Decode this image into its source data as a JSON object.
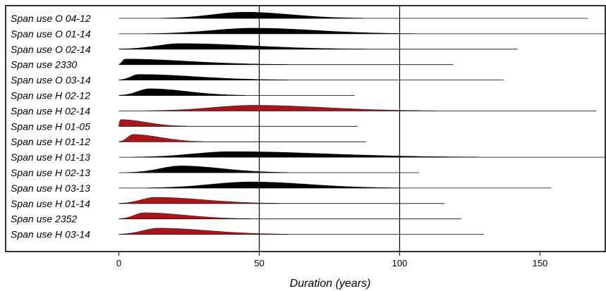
{
  "chart_data": {
    "type": "area",
    "xlabel": "Duration (years)",
    "xlim": [
      -40,
      174
    ],
    "x_ticks": [
      0,
      50,
      100,
      150
    ],
    "grid": "vertical lines at 50 and 100",
    "colors": {
      "black": "#000000",
      "red": "#a6161b"
    },
    "series": [
      {
        "name": "Span use O 04-12",
        "color": "black",
        "range": [
          0,
          167
        ],
        "dist": {
          "start": 15,
          "peak": 45,
          "end": 87,
          "height": 0.55
        }
      },
      {
        "name": "Span use O 01-14",
        "color": "black",
        "range": [
          0,
          174
        ],
        "dist": {
          "start": 10,
          "peak": 48,
          "end": 105,
          "height": 0.5
        }
      },
      {
        "name": "Span use O 02-14",
        "color": "black",
        "range": [
          0,
          142
        ],
        "dist": {
          "start": 0,
          "peak": 22,
          "end": 88,
          "height": 0.5
        }
      },
      {
        "name": "Span use 2330",
        "color": "black",
        "range": [
          0,
          119
        ],
        "dist": {
          "start": 0,
          "peak": 2,
          "end": 60,
          "height": 0.5
        }
      },
      {
        "name": "Span use O 03-14",
        "color": "black",
        "range": [
          0,
          137
        ],
        "dist": {
          "start": 0,
          "peak": 7,
          "end": 60,
          "height": 0.5
        }
      },
      {
        "name": "Span use H 02-12",
        "color": "black",
        "range": [
          0,
          84
        ],
        "dist": {
          "start": 0,
          "peak": 11,
          "end": 45,
          "height": 0.6
        }
      },
      {
        "name": "Span use H 02-14",
        "color": "red",
        "range": [
          0,
          170
        ],
        "dist": {
          "start": 10,
          "peak": 48,
          "end": 113,
          "height": 0.5
        }
      },
      {
        "name": "Span use H 01-05",
        "color": "red",
        "range": [
          0,
          85
        ],
        "dist": {
          "start": 0,
          "peak": 0.5,
          "end": 24,
          "height": 0.6
        }
      },
      {
        "name": "Span use H 01-12",
        "color": "red",
        "range": [
          0,
          88
        ],
        "dist": {
          "start": 0,
          "peak": 5,
          "end": 30,
          "height": 0.65
        }
      },
      {
        "name": "Span use H 01-13",
        "color": "black",
        "range": [
          0,
          174
        ],
        "dist": {
          "start": 5,
          "peak": 40,
          "end": 128,
          "height": 0.5
        }
      },
      {
        "name": "Span use H 02-13",
        "color": "black",
        "range": [
          0,
          107
        ],
        "dist": {
          "start": 3,
          "peak": 22,
          "end": 60,
          "height": 0.6
        }
      },
      {
        "name": "Span use H 03-13",
        "color": "black",
        "range": [
          0,
          154
        ],
        "dist": {
          "start": 10,
          "peak": 47,
          "end": 100,
          "height": 0.55
        }
      },
      {
        "name": "Span use H 01-14",
        "color": "red",
        "range": [
          0,
          116
        ],
        "dist": {
          "start": 0,
          "peak": 13,
          "end": 57,
          "height": 0.55
        }
      },
      {
        "name": "Span use 2352",
        "color": "red",
        "range": [
          0,
          122
        ],
        "dist": {
          "start": 0,
          "peak": 9,
          "end": 47,
          "height": 0.55
        }
      },
      {
        "name": "Span use H 03-14",
        "color": "red",
        "range": [
          0,
          130
        ],
        "dist": {
          "start": 0,
          "peak": 14,
          "end": 60,
          "height": 0.55
        }
      }
    ]
  }
}
